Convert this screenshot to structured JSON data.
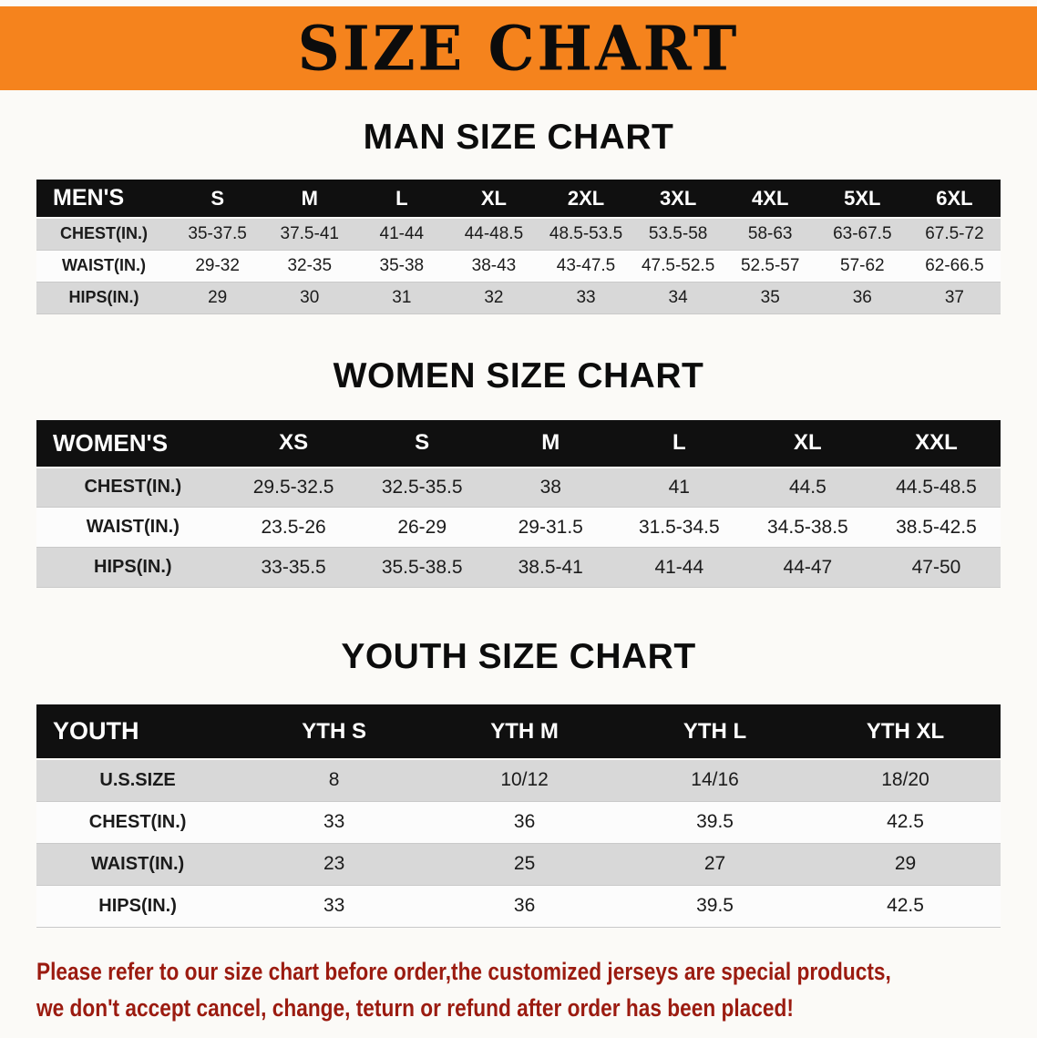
{
  "banner": {
    "title": "SIZE CHART"
  },
  "chart_data": [
    {
      "type": "table",
      "group": "men",
      "title": "MAN SIZE CHART",
      "columns": [
        "MEN'S",
        "S",
        "M",
        "L",
        "XL",
        "2XL",
        "3XL",
        "4XL",
        "5XL",
        "6XL"
      ],
      "rows": [
        [
          "CHEST(IN.)",
          "35-37.5",
          "37.5-41",
          "41-44",
          "44-48.5",
          "48.5-53.5",
          "53.5-58",
          "58-63",
          "63-67.5",
          "67.5-72"
        ],
        [
          "WAIST(IN.)",
          "29-32",
          "32-35",
          "35-38",
          "38-43",
          "43-47.5",
          "47.5-52.5",
          "52.5-57",
          "57-62",
          "62-66.5"
        ],
        [
          "HIPS(IN.)",
          "29",
          "30",
          "31",
          "32",
          "33",
          "34",
          "35",
          "36",
          "37"
        ]
      ]
    },
    {
      "type": "table",
      "group": "women",
      "title": "WOMEN SIZE CHART",
      "columns": [
        "WOMEN'S",
        "XS",
        "S",
        "M",
        "L",
        "XL",
        "XXL"
      ],
      "rows": [
        [
          "CHEST(IN.)",
          "29.5-32.5",
          "32.5-35.5",
          "38",
          "41",
          "44.5",
          "44.5-48.5"
        ],
        [
          "WAIST(IN.)",
          "23.5-26",
          "26-29",
          "29-31.5",
          "31.5-34.5",
          "34.5-38.5",
          "38.5-42.5"
        ],
        [
          "HIPS(IN.)",
          "33-35.5",
          "35.5-38.5",
          "38.5-41",
          "41-44",
          "44-47",
          "47-50"
        ]
      ]
    },
    {
      "type": "table",
      "group": "youth",
      "title": "YOUTH SIZE CHART",
      "columns": [
        "YOUTH",
        "YTH S",
        "YTH M",
        "YTH L",
        "YTH XL"
      ],
      "rows": [
        [
          "U.S.SIZE",
          "8",
          "10/12",
          "14/16",
          "18/20"
        ],
        [
          "CHEST(IN.)",
          "33",
          "36",
          "39.5",
          "42.5"
        ],
        [
          "WAIST(IN.)",
          "23",
          "25",
          "27",
          "29"
        ],
        [
          "HIPS(IN.)",
          "33",
          "36",
          "39.5",
          "42.5"
        ]
      ]
    }
  ],
  "disclaimer": {
    "line1": "Please refer to our size chart before order,the customized jerseys are special products,",
    "line2": "we don't accept cancel, change, teturn or refund after order has been placed!"
  },
  "colors": {
    "banner_orange": "#f5831d",
    "table_header_black": "#101010",
    "row_gray": "#d8d8d8",
    "disclaimer_red": "#9b1b10"
  }
}
